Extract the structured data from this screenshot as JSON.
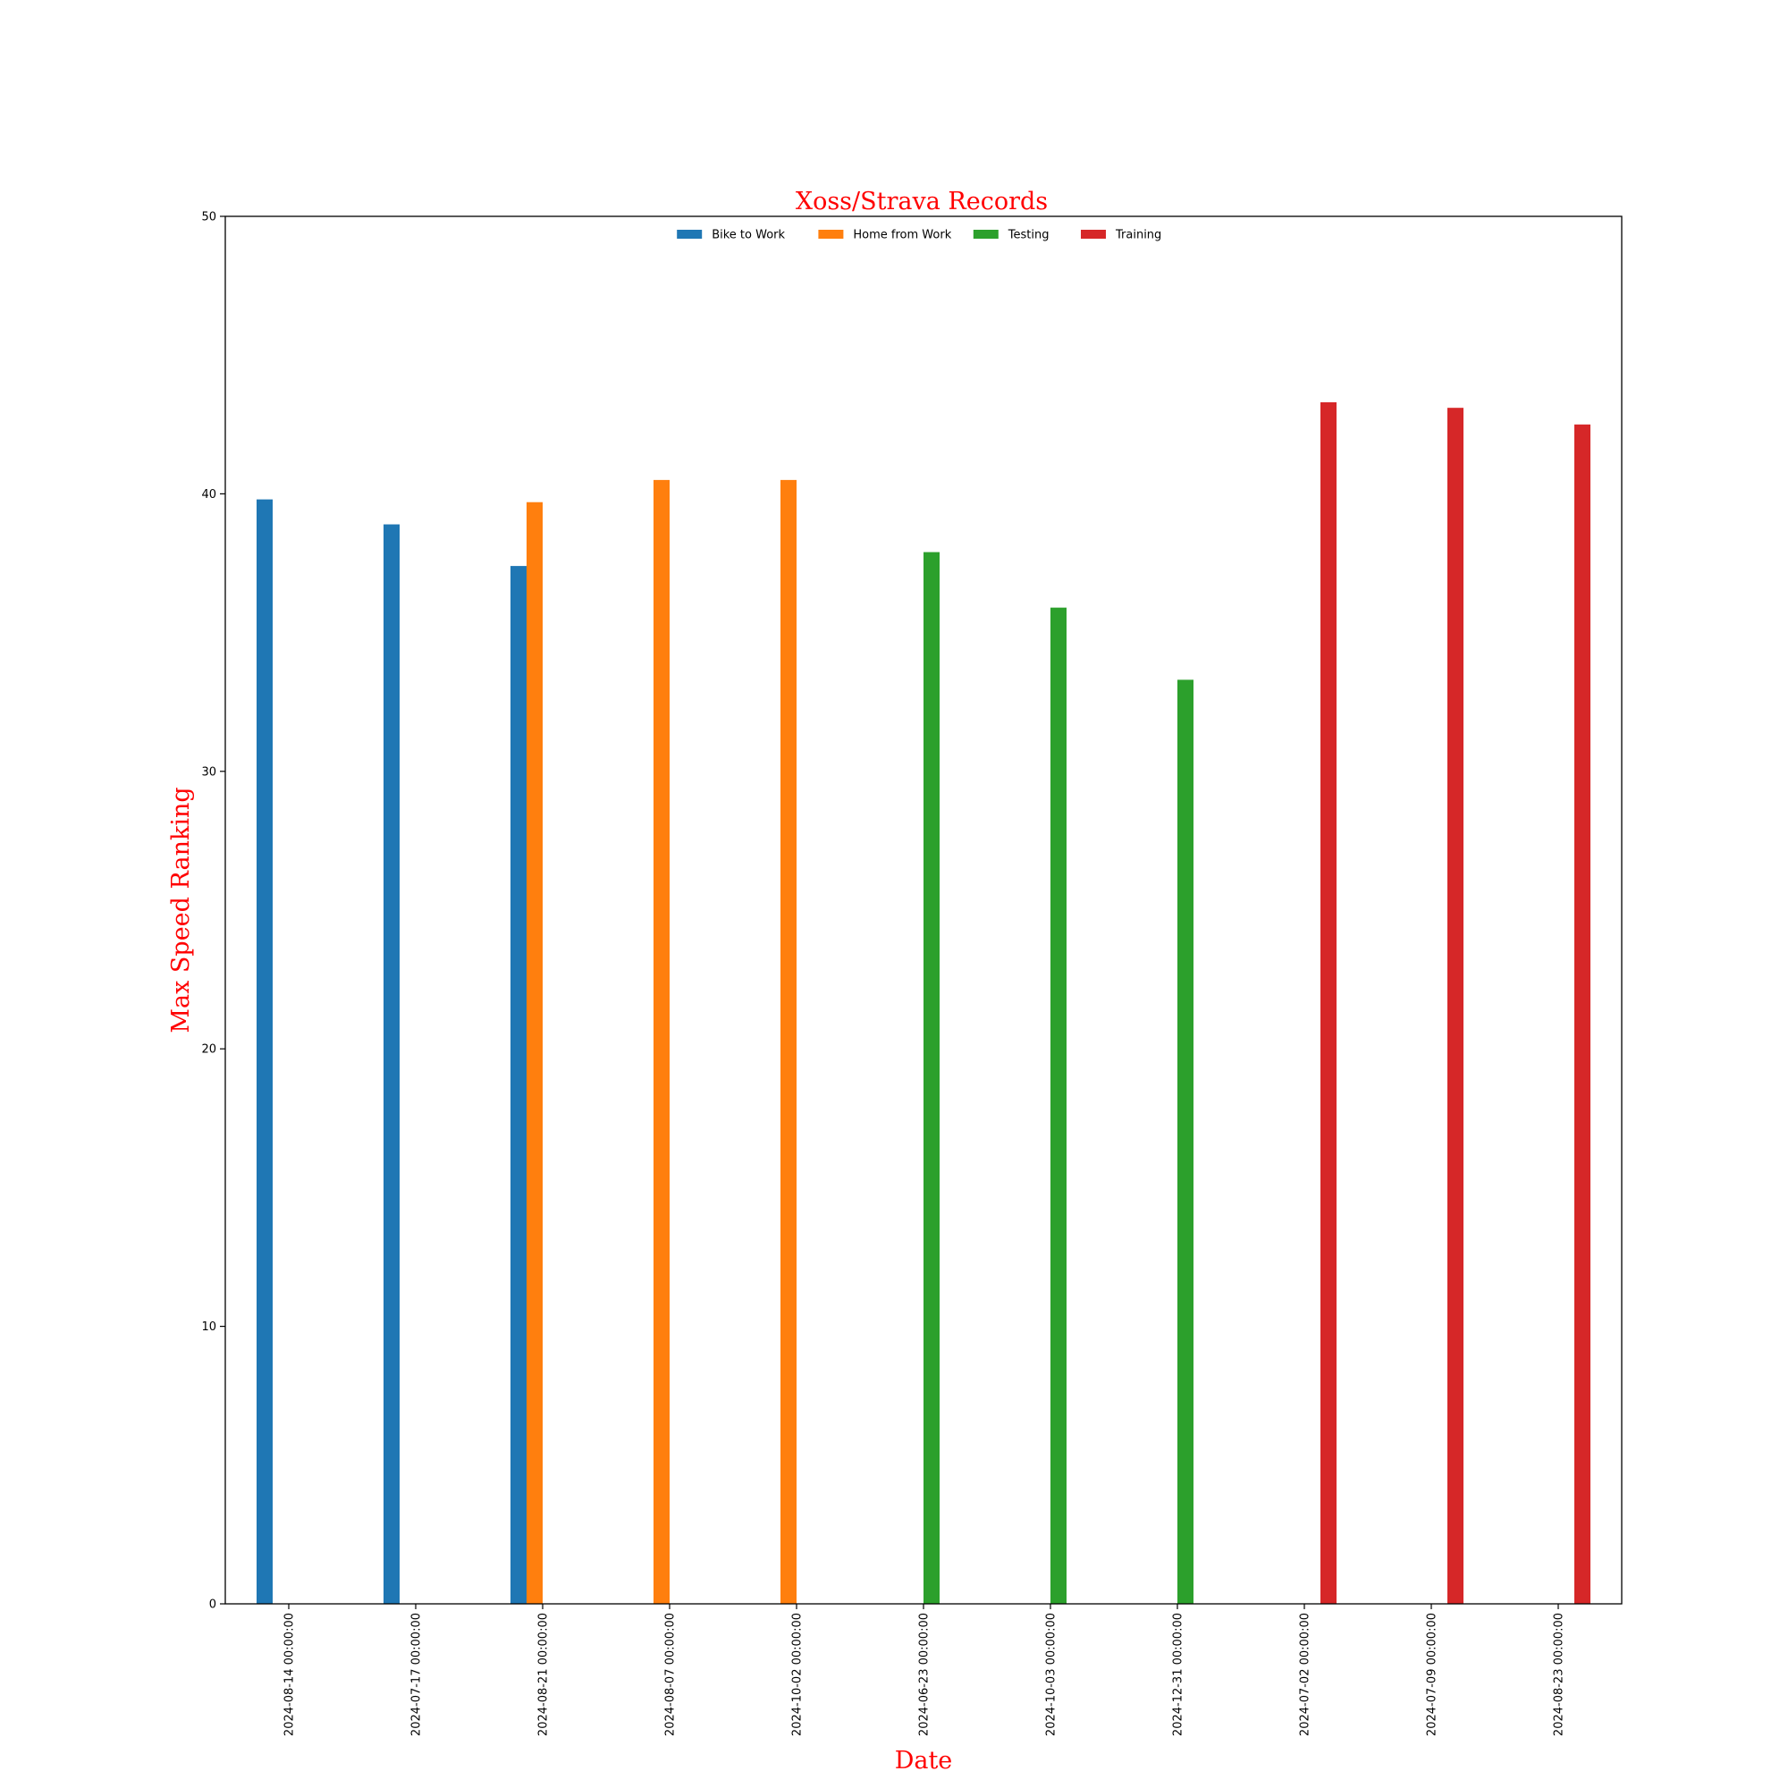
{
  "chart_data": {
    "type": "bar",
    "title": "Xoss/Strava Records",
    "xlabel": "Date",
    "ylabel": "Max Speed Ranking",
    "ylim": [
      0,
      50
    ],
    "yticks": [
      0,
      10,
      20,
      30,
      40,
      50
    ],
    "grid": false,
    "legend_position": "top-center",
    "label_color": "#ff0000",
    "categories": [
      "2024-08-14 00:00:00",
      "2024-07-17 00:00:00",
      "2024-08-21 00:00:00",
      "2024-08-07 00:00:00",
      "2024-10-02 00:00:00",
      "2024-06-23 00:00:00",
      "2024-10-03 00:00:00",
      "2024-12-31 00:00:00",
      "2024-07-02 00:00:00",
      "2024-07-09 00:00:00",
      "2024-08-23 00:00:00"
    ],
    "series": [
      {
        "name": "Bike to Work",
        "color": "#1f77b4",
        "values": [
          39.8,
          38.9,
          37.4,
          null,
          null,
          null,
          null,
          null,
          null,
          null,
          null
        ]
      },
      {
        "name": "Home from Work",
        "color": "#ff7f0e",
        "values": [
          null,
          null,
          39.7,
          40.5,
          40.5,
          null,
          null,
          null,
          null,
          null,
          null
        ]
      },
      {
        "name": "Testing",
        "color": "#2ca02c",
        "values": [
          null,
          null,
          null,
          null,
          null,
          37.9,
          35.9,
          33.3,
          null,
          null,
          null
        ]
      },
      {
        "name": "Training",
        "color": "#d62728",
        "values": [
          null,
          null,
          null,
          null,
          null,
          null,
          null,
          null,
          43.3,
          43.1,
          42.5
        ]
      }
    ]
  }
}
